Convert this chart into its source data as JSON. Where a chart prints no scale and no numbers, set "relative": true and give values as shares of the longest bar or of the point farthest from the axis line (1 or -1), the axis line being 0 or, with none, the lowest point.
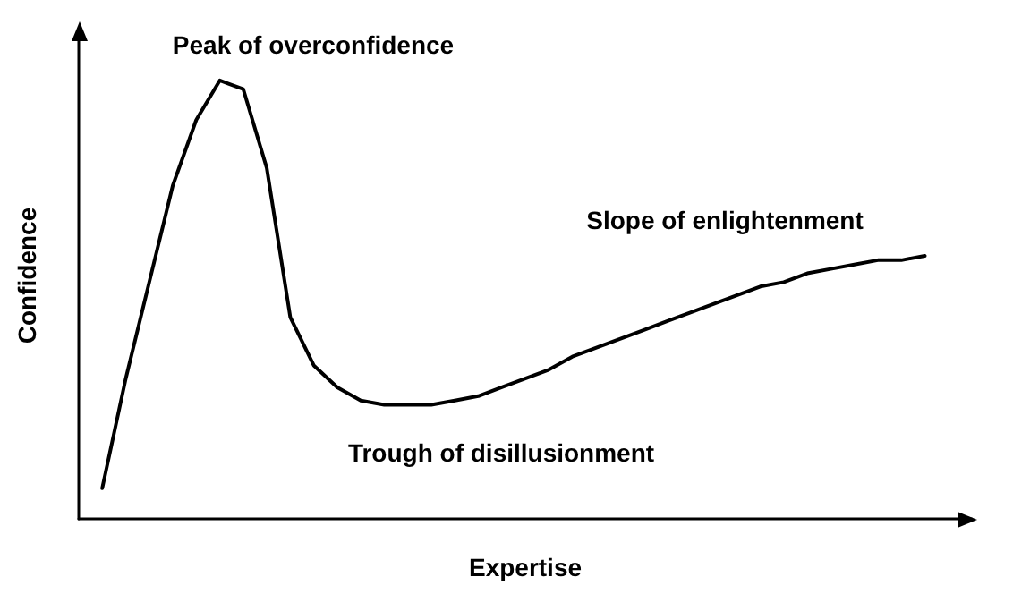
{
  "chart_data": {
    "type": "line",
    "relative": true,
    "xlabel": "Expertise",
    "ylabel": "Confidence",
    "annotations": [
      "Peak of overconfidence",
      "Slope of enlightenment",
      "Trough of disillusionment"
    ],
    "categories": [
      null,
      null,
      null,
      null,
      null,
      null,
      null,
      null,
      null,
      null,
      null,
      null,
      null,
      null,
      null,
      null,
      null,
      null,
      null,
      null,
      null,
      null,
      null,
      null,
      null,
      null,
      null,
      null,
      null,
      null,
      null,
      null,
      null,
      null,
      null,
      null
    ],
    "series": [
      {
        "color": "#000000",
        "values": [
          0.07,
          0.32,
          0.54,
          0.76,
          0.91,
          1.0,
          0.98,
          0.8,
          0.46,
          0.35,
          0.3,
          0.27,
          0.26,
          0.26,
          0.26,
          0.27,
          0.28,
          0.3,
          0.32,
          0.34,
          0.37,
          0.39,
          0.41,
          0.43,
          0.45,
          0.47,
          0.49,
          0.51,
          0.53,
          0.54,
          0.56,
          0.57,
          0.58,
          0.59,
          0.59,
          0.6
        ]
      }
    ],
    "marker": "none",
    "line_style": "solid"
  }
}
